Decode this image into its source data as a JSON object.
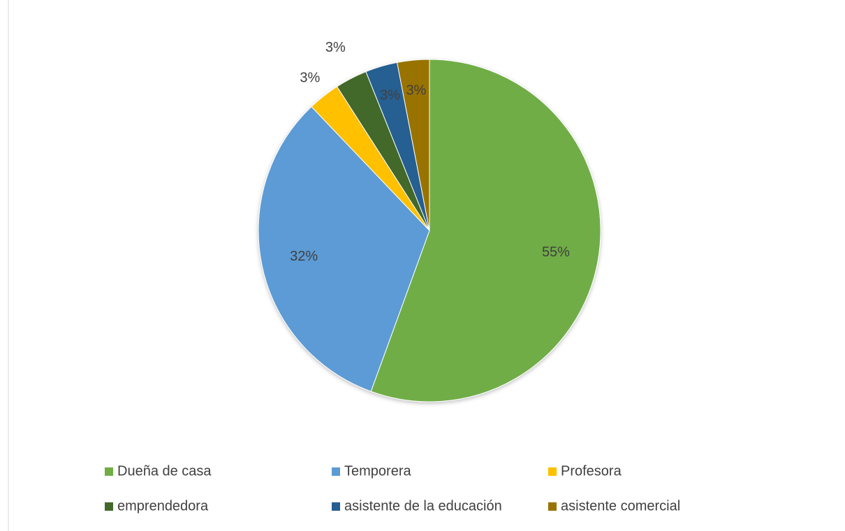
{
  "chart_data": {
    "type": "pie",
    "categories": [
      "Dueña de casa",
      "Temporera",
      "Profesora",
      "emprendedora",
      "asistente de la educación",
      "asistente comercial"
    ],
    "values": [
      55,
      32,
      3,
      3,
      3,
      3
    ],
    "value_labels": [
      "55%",
      "32%",
      "3%",
      "3%",
      "3%",
      "3%"
    ],
    "colors": [
      "#70ad47",
      "#5b9bd5",
      "#ffc000",
      "#43682b",
      "#255e91",
      "#997300"
    ],
    "legend": "bottom"
  }
}
